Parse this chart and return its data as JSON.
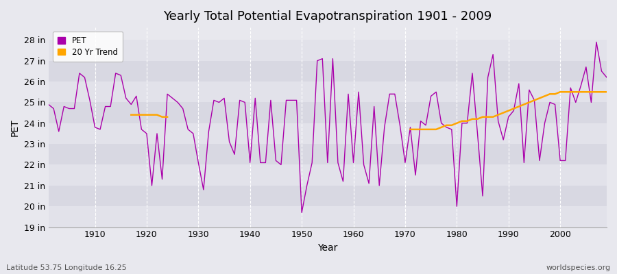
{
  "title": "Yearly Total Potential Evapotranspiration 1901 - 2009",
  "xlabel": "Year",
  "ylabel": "PET",
  "footnote_left": "Latitude 53.75 Longitude 16.25",
  "footnote_right": "worldspecies.org",
  "pet_color": "#AA00AA",
  "trend_color": "#FFA500",
  "bg_color": "#e8e8ee",
  "band_light": "#ebebf2",
  "band_dark": "#dcdce6",
  "grid_color": "#ffffff",
  "ylim": [
    19.0,
    28.6
  ],
  "yticks": [
    19,
    20,
    21,
    22,
    23,
    24,
    25,
    26,
    27,
    28
  ],
  "ytick_labels": [
    "19 in",
    "20 in",
    "21 in",
    "22 in",
    "23 in",
    "24 in",
    "25 in",
    "26 in",
    "27 in",
    "28 in"
  ],
  "years": [
    1901,
    1902,
    1903,
    1904,
    1905,
    1906,
    1907,
    1908,
    1909,
    1910,
    1911,
    1912,
    1913,
    1914,
    1915,
    1916,
    1917,
    1918,
    1919,
    1920,
    1921,
    1922,
    1923,
    1924,
    1925,
    1926,
    1927,
    1928,
    1929,
    1930,
    1931,
    1932,
    1933,
    1934,
    1935,
    1936,
    1937,
    1938,
    1939,
    1940,
    1941,
    1942,
    1943,
    1944,
    1945,
    1946,
    1947,
    1948,
    1949,
    1950,
    1951,
    1952,
    1953,
    1954,
    1955,
    1956,
    1957,
    1958,
    1959,
    1960,
    1961,
    1962,
    1963,
    1964,
    1965,
    1966,
    1967,
    1968,
    1969,
    1970,
    1971,
    1972,
    1973,
    1974,
    1975,
    1976,
    1977,
    1978,
    1979,
    1980,
    1981,
    1982,
    1983,
    1984,
    1985,
    1986,
    1987,
    1988,
    1989,
    1990,
    1991,
    1992,
    1993,
    1994,
    1995,
    1996,
    1997,
    1998,
    1999,
    2000,
    2001,
    2002,
    2003,
    2004,
    2005,
    2006,
    2007,
    2008,
    2009
  ],
  "pet_values": [
    24.9,
    24.7,
    23.6,
    24.8,
    24.7,
    24.7,
    26.4,
    26.2,
    25.1,
    23.8,
    23.7,
    24.8,
    24.8,
    26.4,
    26.3,
    25.2,
    24.9,
    25.3,
    23.7,
    23.5,
    21.0,
    23.5,
    21.3,
    25.4,
    25.2,
    25.0,
    24.7,
    23.7,
    23.5,
    22.1,
    20.8,
    23.6,
    25.1,
    25.0,
    25.2,
    23.1,
    22.5,
    25.1,
    25.0,
    22.1,
    25.2,
    22.1,
    22.1,
    25.1,
    22.2,
    22.0,
    25.1,
    25.1,
    25.1,
    19.7,
    21.0,
    22.1,
    27.0,
    27.1,
    22.1,
    27.1,
    22.1,
    21.2,
    25.4,
    22.1,
    25.5,
    22.0,
    21.1,
    24.8,
    21.0,
    23.8,
    25.4,
    25.4,
    23.9,
    22.1,
    23.8,
    21.5,
    24.1,
    23.9,
    25.3,
    25.5,
    24.0,
    23.8,
    23.7,
    20.0,
    24.0,
    24.0,
    26.4,
    23.5,
    20.5,
    26.2,
    27.3,
    24.1,
    23.2,
    24.3,
    24.6,
    25.9,
    22.1,
    25.6,
    25.1,
    22.2,
    24.0,
    25.0,
    24.9,
    22.2,
    22.2,
    25.7,
    25.0,
    25.8,
    26.7,
    25.0,
    27.9,
    26.5,
    26.2
  ],
  "trend_seg1_years": [
    1917,
    1918,
    1919,
    1920,
    1921,
    1922,
    1923,
    1924
  ],
  "trend_seg1_vals": [
    24.4,
    24.4,
    24.4,
    24.4,
    24.4,
    24.4,
    24.3,
    24.3
  ],
  "trend_seg2_years": [
    1971,
    1972,
    1973,
    1974,
    1975,
    1976,
    1977,
    1978,
    1979,
    1980,
    1981,
    1982,
    1983,
    1984,
    1985,
    1986,
    1987,
    1988,
    1989,
    1990,
    1991,
    1992,
    1993,
    1994,
    1995,
    1996,
    1997,
    1998,
    1999,
    2000,
    2001,
    2002,
    2003,
    2004,
    2005,
    2006,
    2007,
    2008,
    2009
  ],
  "trend_seg2_vals": [
    23.7,
    23.7,
    23.7,
    23.7,
    23.7,
    23.7,
    23.8,
    23.9,
    23.9,
    24.0,
    24.1,
    24.1,
    24.2,
    24.2,
    24.3,
    24.3,
    24.3,
    24.4,
    24.5,
    24.6,
    24.7,
    24.8,
    24.9,
    25.0,
    25.1,
    25.2,
    25.3,
    25.4,
    25.4,
    25.5,
    25.5,
    25.5,
    25.5,
    25.5,
    25.5,
    25.5,
    25.5,
    25.5,
    25.5
  ]
}
